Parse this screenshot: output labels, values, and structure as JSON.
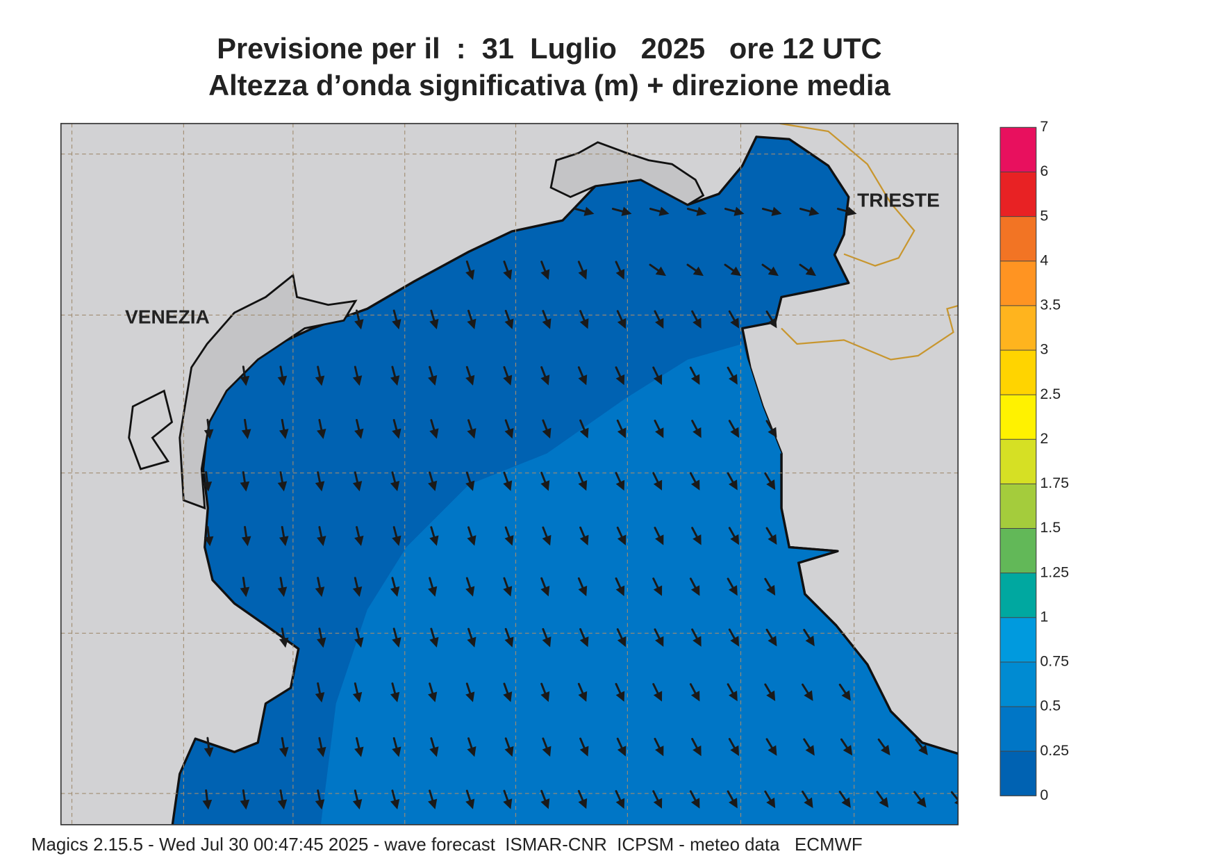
{
  "title": "Previsione per il  :  31  Luglio   2025   ore 12 UTC",
  "subtitle": "Altezza d’onda significativa (m) + direzione media",
  "labels": [
    "VENEZIA",
    "TRIESTE"
  ],
  "legend": {
    "levels": [
      0,
      0.25,
      0.5,
      0.75,
      1,
      1.25,
      1.5,
      1.75,
      2,
      2.5,
      3,
      3.5,
      4,
      5,
      6,
      7
    ],
    "colors": [
      "#0062b2",
      "#0076c6",
      "#008bd2",
      "#009ade",
      "#00a8a0",
      "#62b858",
      "#a4cc3c",
      "#d6e024",
      "#fff200",
      "#ffd400",
      "#ffb41e",
      "#ff9422",
      "#f27424",
      "#e82224",
      "#e8105e"
    ]
  },
  "footer": "Magics 2.15.5 - Wed Jul 30 00:47:45 2025 - wave forecast  ISMAR-CNR  ICPSM - meteo data   ECMWF"
}
